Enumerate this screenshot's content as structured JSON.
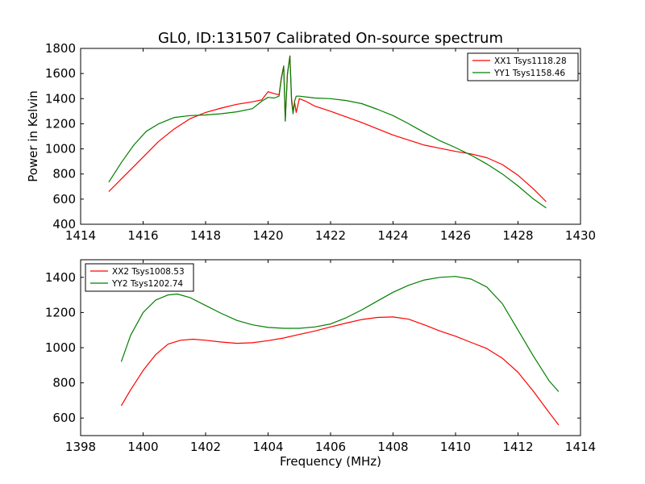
{
  "figure": {
    "title": "GL0, ID:131507 Calibrated On-source spectrum",
    "xlabel": "Frequency (MHz)",
    "ylabel": "Power in Kelvin"
  },
  "chart_data": [
    {
      "type": "line",
      "title": "GL0, ID:131507 Calibrated On-source spectrum",
      "ylabel": "Power in Kelvin",
      "xlabel": "",
      "xlim": [
        1414,
        1430
      ],
      "ylim": [
        400,
        1800
      ],
      "xticks": [
        1414,
        1416,
        1418,
        1420,
        1422,
        1424,
        1426,
        1428,
        1430
      ],
      "yticks": [
        400,
        600,
        800,
        1000,
        1200,
        1400,
        1600,
        1800
      ],
      "legend": "top-right",
      "grid": false,
      "series": [
        {
          "name": "XX1 Tsys1118.28",
          "color": "#ff0000",
          "x": [
            1414.9,
            1415.3,
            1415.7,
            1416.1,
            1416.5,
            1417,
            1417.5,
            1418,
            1418.5,
            1419,
            1419.5,
            1419.8,
            1420,
            1420.2,
            1420.35,
            1420.42,
            1420.5,
            1420.55,
            1420.62,
            1420.7,
            1420.75,
            1420.8,
            1420.85,
            1420.9,
            1421,
            1421.2,
            1421.5,
            1422,
            1422.5,
            1423,
            1423.5,
            1424,
            1424.5,
            1425,
            1425.5,
            1426,
            1426.5,
            1427,
            1427.5,
            1428,
            1428.5,
            1428.9
          ],
          "y": [
            660,
            760,
            860,
            960,
            1060,
            1160,
            1240,
            1290,
            1325,
            1355,
            1375,
            1390,
            1455,
            1440,
            1430,
            1560,
            1660,
            1230,
            1600,
            1740,
            1400,
            1300,
            1370,
            1290,
            1400,
            1380,
            1340,
            1300,
            1255,
            1210,
            1160,
            1110,
            1070,
            1030,
            1005,
            980,
            960,
            930,
            875,
            790,
            680,
            580
          ]
        },
        {
          "name": "YY1 Tsys1158.46",
          "color": "#008000",
          "x": [
            1414.9,
            1415.3,
            1415.7,
            1416.1,
            1416.5,
            1417,
            1417.5,
            1418,
            1418.5,
            1419,
            1419.5,
            1419.8,
            1420,
            1420.2,
            1420.35,
            1420.42,
            1420.5,
            1420.55,
            1420.62,
            1420.7,
            1420.75,
            1420.8,
            1420.85,
            1420.9,
            1421,
            1421.5,
            1422,
            1422.5,
            1423,
            1423.5,
            1424,
            1424.5,
            1425,
            1425.5,
            1426,
            1426.5,
            1427,
            1427.5,
            1428,
            1428.5,
            1428.9
          ],
          "y": [
            735,
            890,
            1030,
            1140,
            1200,
            1250,
            1265,
            1270,
            1280,
            1295,
            1320,
            1380,
            1410,
            1405,
            1420,
            1550,
            1660,
            1220,
            1590,
            1740,
            1380,
            1280,
            1380,
            1420,
            1420,
            1405,
            1400,
            1385,
            1360,
            1315,
            1265,
            1200,
            1130,
            1065,
            1010,
            950,
            880,
            800,
            705,
            600,
            530
          ]
        }
      ]
    },
    {
      "type": "line",
      "title": "",
      "xlabel": "Frequency (MHz)",
      "ylabel": "",
      "xlim": [
        1398,
        1414
      ],
      "ylim": [
        500,
        1500
      ],
      "xticks": [
        1398,
        1400,
        1402,
        1404,
        1406,
        1408,
        1410,
        1412,
        1414
      ],
      "yticks": [
        600,
        800,
        1000,
        1200,
        1400
      ],
      "legend": "top-left",
      "grid": false,
      "series": [
        {
          "name": "XX2 Tsys1008.53",
          "color": "#ff0000",
          "x": [
            1399.3,
            1399.6,
            1400,
            1400.4,
            1400.8,
            1401.2,
            1401.6,
            1402,
            1402.5,
            1403,
            1403.5,
            1404,
            1404.5,
            1405,
            1405.5,
            1406,
            1406.5,
            1407,
            1407.5,
            1408,
            1408.5,
            1409,
            1409.5,
            1410,
            1410.5,
            1411,
            1411.5,
            1412,
            1412.5,
            1413,
            1413.3
          ],
          "y": [
            670,
            760,
            870,
            960,
            1020,
            1042,
            1048,
            1042,
            1032,
            1025,
            1028,
            1040,
            1055,
            1075,
            1095,
            1118,
            1140,
            1160,
            1172,
            1175,
            1162,
            1130,
            1095,
            1065,
            1030,
            995,
            940,
            860,
            750,
            630,
            560
          ]
        },
        {
          "name": "YY2 Tsys1202.74",
          "color": "#008000",
          "x": [
            1399.3,
            1399.6,
            1400,
            1400.4,
            1400.8,
            1401.1,
            1401.5,
            1402,
            1402.5,
            1403,
            1403.5,
            1404,
            1404.5,
            1405,
            1405.5,
            1406,
            1406.5,
            1407,
            1407.5,
            1408,
            1408.5,
            1409,
            1409.5,
            1410,
            1410.5,
            1411,
            1411.5,
            1412,
            1412.5,
            1413,
            1413.3
          ],
          "y": [
            920,
            1070,
            1200,
            1270,
            1300,
            1305,
            1285,
            1240,
            1195,
            1155,
            1130,
            1115,
            1110,
            1110,
            1118,
            1135,
            1170,
            1215,
            1265,
            1315,
            1355,
            1385,
            1400,
            1405,
            1390,
            1345,
            1250,
            1100,
            950,
            810,
            750
          ]
        }
      ]
    }
  ]
}
